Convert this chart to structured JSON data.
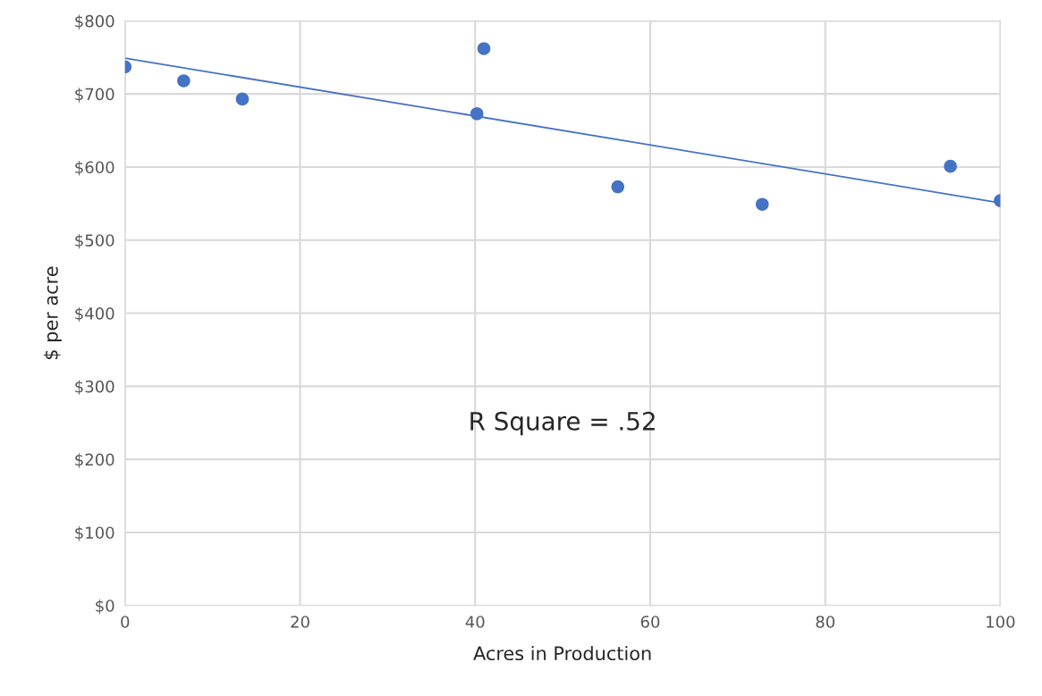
{
  "chart_data": {
    "type": "scatter",
    "xlabel": "Acres in Production",
    "ylabel": "$ per acre",
    "xlim": [
      0,
      100
    ],
    "xticks": [
      0,
      20,
      40,
      60,
      80,
      100
    ],
    "ylim": [
      0,
      800
    ],
    "yticks": [
      {
        "value": 0,
        "label": "$0"
      },
      {
        "value": 100,
        "label": "$100"
      },
      {
        "value": 200,
        "label": "$200"
      },
      {
        "value": 300,
        "label": "$300"
      },
      {
        "value": 400,
        "label": "$400"
      },
      {
        "value": 500,
        "label": "$500"
      },
      {
        "value": 600,
        "label": "$600"
      },
      {
        "value": 700,
        "label": "$700"
      },
      {
        "value": 800,
        "label": "$800"
      }
    ],
    "grid": true,
    "legend": false,
    "annotations": [
      "R Square = .52"
    ],
    "series": [
      {
        "marker": "circle",
        "color": "#4472c4",
        "x": [
          0,
          6.7,
          13.4,
          40.2,
          41,
          56.3,
          72.8,
          94.3,
          100
        ],
        "values": [
          737,
          718,
          693,
          673,
          762,
          573,
          549,
          601,
          554
        ]
      },
      {
        "type": "line",
        "color": "#4472c4",
        "x": [
          0,
          100
        ],
        "values": [
          749,
          551
        ]
      }
    ]
  }
}
